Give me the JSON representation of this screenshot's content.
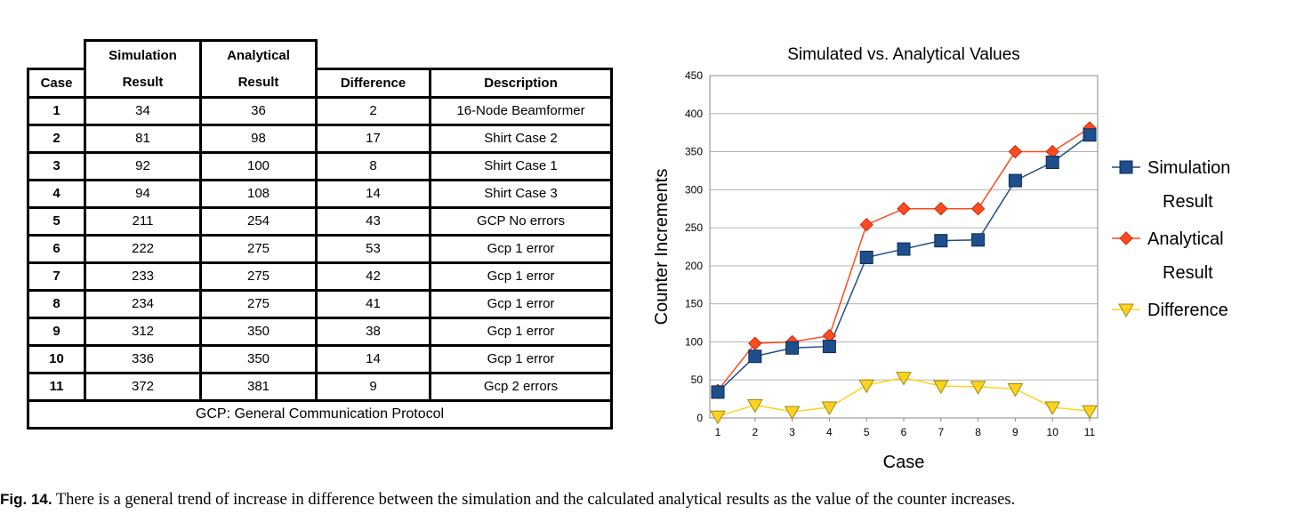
{
  "table": {
    "header_top": [
      "Simulation",
      "Analytical"
    ],
    "header_bottom": [
      "Case",
      "Result",
      "Result",
      "Difference",
      "Description"
    ],
    "rows": [
      {
        "case": "1",
        "sim": "34",
        "ana": "36",
        "diff": "2",
        "desc": "16-Node Beamformer"
      },
      {
        "case": "2",
        "sim": "81",
        "ana": "98",
        "diff": "17",
        "desc": "Shirt Case 2"
      },
      {
        "case": "3",
        "sim": "92",
        "ana": "100",
        "diff": "8",
        "desc": "Shirt Case 1"
      },
      {
        "case": "4",
        "sim": "94",
        "ana": "108",
        "diff": "14",
        "desc": "Shirt Case 3"
      },
      {
        "case": "5",
        "sim": "211",
        "ana": "254",
        "diff": "43",
        "desc": "GCP No errors"
      },
      {
        "case": "6",
        "sim": "222",
        "ana": "275",
        "diff": "53",
        "desc": "Gcp 1 error"
      },
      {
        "case": "7",
        "sim": "233",
        "ana": "275",
        "diff": "42",
        "desc": "Gcp 1 error"
      },
      {
        "case": "8",
        "sim": "234",
        "ana": "275",
        "diff": "41",
        "desc": "Gcp 1 error"
      },
      {
        "case": "9",
        "sim": "312",
        "ana": "350",
        "diff": "38",
        "desc": "Gcp 1 error"
      },
      {
        "case": "10",
        "sim": "336",
        "ana": "350",
        "diff": "14",
        "desc": "Gcp 1 error"
      },
      {
        "case": "11",
        "sim": "372",
        "ana": "381",
        "diff": "9",
        "desc": "Gcp 2 errors"
      }
    ],
    "footer": "GCP: General Communication Protocol"
  },
  "chart_data": {
    "type": "line",
    "title": "Simulated vs. Analytical Values",
    "xlabel": "Case",
    "ylabel": "Counter Increments",
    "x": [
      1,
      2,
      3,
      4,
      5,
      6,
      7,
      8,
      9,
      10,
      11
    ],
    "ylim": [
      0,
      450
    ],
    "yticks": [
      0,
      50,
      100,
      150,
      200,
      250,
      300,
      350,
      400,
      450
    ],
    "grid": true,
    "legend_position": "right",
    "series": [
      {
        "name": "Simulation Result",
        "legend_lines": [
          "Simulation",
          "Result"
        ],
        "color": "#1f4e8c",
        "marker": "square",
        "values": [
          34,
          81,
          92,
          94,
          211,
          222,
          233,
          234,
          312,
          336,
          372
        ]
      },
      {
        "name": "Analytical Result",
        "legend_lines": [
          "Analytical",
          "Result"
        ],
        "color": "#ff4b1f",
        "marker": "diamond",
        "values": [
          36,
          98,
          100,
          108,
          254,
          275,
          275,
          275,
          350,
          350,
          381
        ]
      },
      {
        "name": "Difference",
        "legend_lines": [
          "Difference"
        ],
        "color": "#ffd21f",
        "marker": "triangle-down",
        "values": [
          2,
          17,
          8,
          14,
          43,
          53,
          42,
          41,
          38,
          14,
          9
        ]
      }
    ]
  },
  "caption": {
    "label": "Fig. 14.",
    "text": " There is a general trend of increase in difference between the simulation and the calculated analytical results as the value of the counter increases."
  }
}
